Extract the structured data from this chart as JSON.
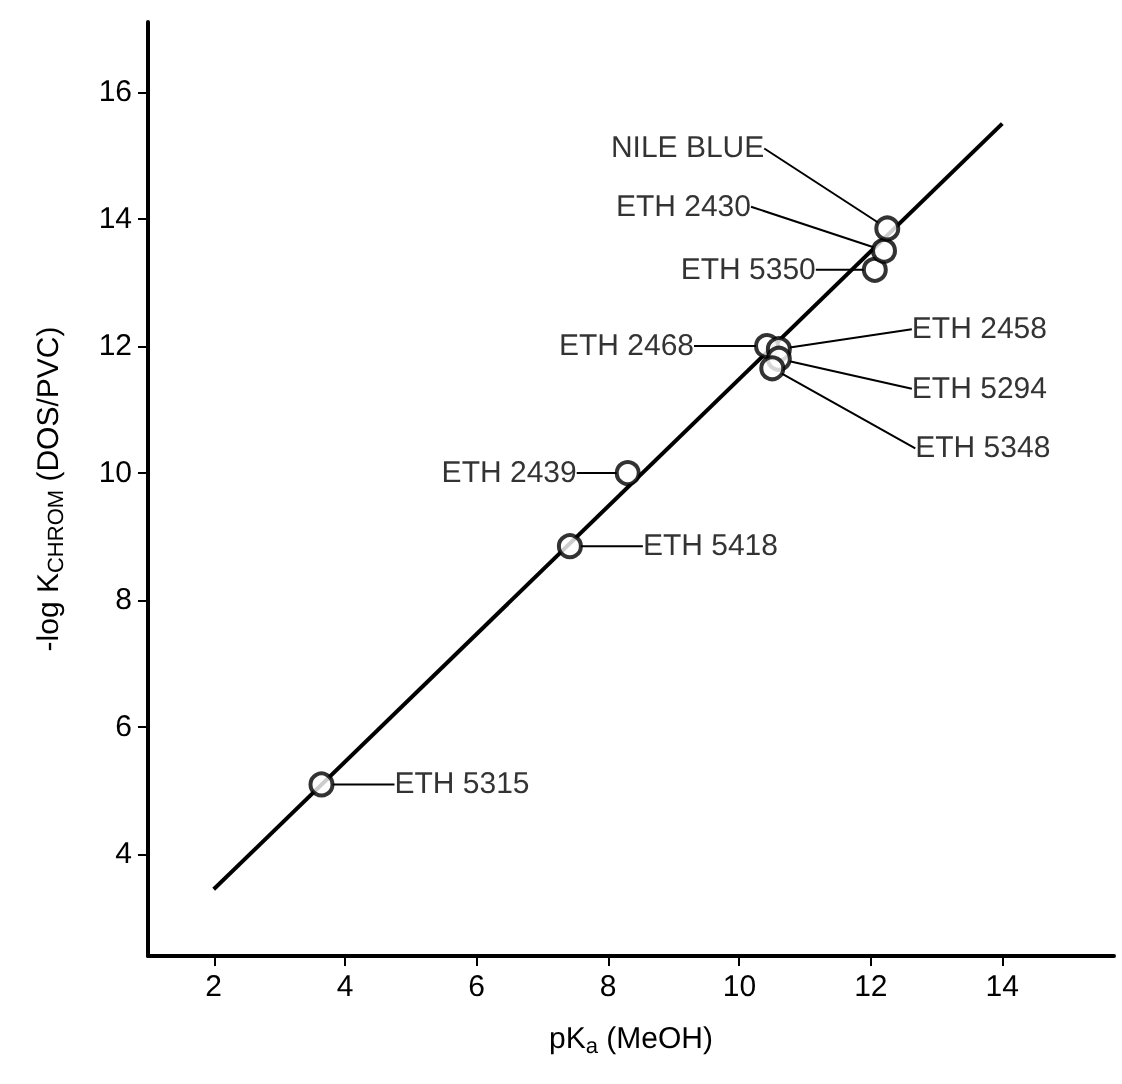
{
  "chart_data": {
    "type": "scatter",
    "xlabel": "pK$_{a}$ (MeOH)",
    "ylabel": "-log K$_{CHROM}$ (DOS/PVC)",
    "xlim": [
      1,
      15.7
    ],
    "ylim": [
      2.4,
      17.1
    ],
    "xticks": [
      2,
      4,
      6,
      8,
      10,
      12,
      14
    ],
    "yticks": [
      4,
      6,
      8,
      10,
      12,
      14,
      16
    ],
    "grid": false,
    "marker": "circle",
    "series": [
      {
        "color": "#000000",
        "x": [
          3.64,
          7.42,
          8.3,
          10.42,
          10.6,
          10.6,
          10.5,
          12.06,
          12.2,
          12.25
        ],
        "values": [
          5.1,
          8.85,
          10.0,
          12.0,
          11.95,
          11.8,
          11.65,
          13.2,
          13.5,
          13.85
        ]
      },
      {
        "type": "line",
        "color": "#000000",
        "marker": "none",
        "line_style": "solid",
        "x": [
          2,
          14
        ],
        "values": [
          3.45,
          15.5
        ]
      }
    ],
    "annotations": [
      {
        "text": "ETH 5315",
        "x": 3.64,
        "y": 5.1
      },
      {
        "text": "ETH 5418",
        "x": 7.42,
        "y": 8.85
      },
      {
        "text": "ETH 2439",
        "x": 8.3,
        "y": 10.0
      },
      {
        "text": "ETH 2468",
        "x": 10.42,
        "y": 12.0
      },
      {
        "text": "ETH 2458",
        "x": 10.6,
        "y": 11.95
      },
      {
        "text": "ETH 5294",
        "x": 10.6,
        "y": 11.8
      },
      {
        "text": "ETH 5348",
        "x": 10.5,
        "y": 11.65
      },
      {
        "text": "ETH 5350",
        "x": 12.06,
        "y": 13.2
      },
      {
        "text": "ETH 2430",
        "x": 12.2,
        "y": 13.5
      },
      {
        "text": "NILE BLUE",
        "x": 12.25,
        "y": 13.85
      }
    ]
  }
}
